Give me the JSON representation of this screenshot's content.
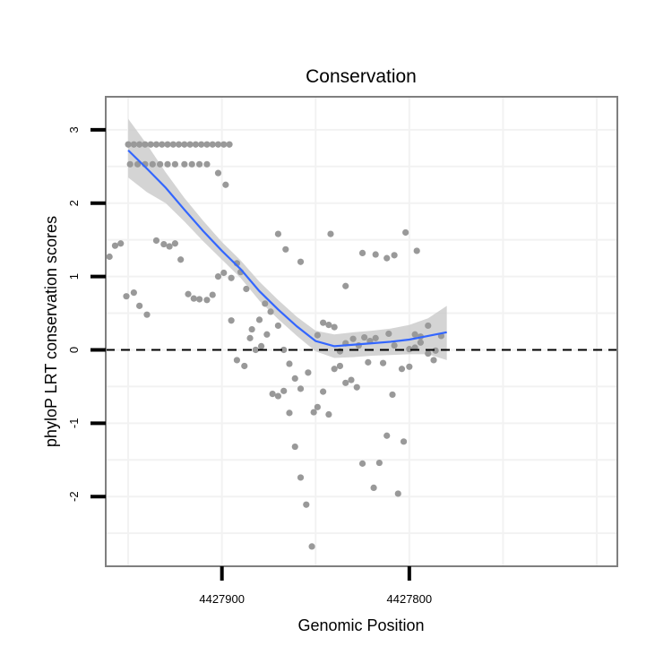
{
  "chart_data": {
    "type": "scatter",
    "title": "Conservation",
    "xlabel": "Genomic Position",
    "ylabel": "phyloP LRT conservation scores",
    "x_reversed": true,
    "xlim": [
      4427962,
      4427689
    ],
    "ylim": [
      -2.95,
      3.45
    ],
    "x_ticks": [
      4427900,
      4427800
    ],
    "x_tick_labels": [
      "4427900",
      "4427800"
    ],
    "y_ticks": [
      -2,
      -1,
      0,
      1,
      2,
      3
    ],
    "y_tick_labels": [
      "-2",
      "-1",
      "0",
      "1",
      "2",
      "3"
    ],
    "grid": true,
    "reference_line": {
      "y": 0,
      "style": "dashed"
    },
    "colors": {
      "points": "#999999",
      "smooth_line": "#3366ff",
      "ribbon": "#cccccc",
      "panel_border": "#7f7f7f",
      "grid": "#f2f2f2"
    },
    "series": [
      {
        "type": "points",
        "points": [
          [
            4427950,
            2.8
          ],
          [
            4427947,
            2.8
          ],
          [
            4427944,
            2.8
          ],
          [
            4427941,
            2.8
          ],
          [
            4427938,
            2.8
          ],
          [
            4427935,
            2.8
          ],
          [
            4427932,
            2.8
          ],
          [
            4427929,
            2.8
          ],
          [
            4427926,
            2.8
          ],
          [
            4427923,
            2.8
          ],
          [
            4427920,
            2.8
          ],
          [
            4427917,
            2.8
          ],
          [
            4427914,
            2.8
          ],
          [
            4427911,
            2.8
          ],
          [
            4427908,
            2.8
          ],
          [
            4427905,
            2.8
          ],
          [
            4427902,
            2.8
          ],
          [
            4427899,
            2.8
          ],
          [
            4427896,
            2.8
          ],
          [
            4427949,
            2.53
          ],
          [
            4427945,
            2.53
          ],
          [
            4427941,
            2.53
          ],
          [
            4427937,
            2.53
          ],
          [
            4427933,
            2.53
          ],
          [
            4427929,
            2.53
          ],
          [
            4427925,
            2.53
          ],
          [
            4427920,
            2.53
          ],
          [
            4427916,
            2.53
          ],
          [
            4427912,
            2.53
          ],
          [
            4427908,
            2.53
          ],
          [
            4427902,
            2.41
          ],
          [
            4427898,
            2.25
          ],
          [
            4427870,
            1.58
          ],
          [
            4427866,
            1.37
          ],
          [
            4427858,
            1.2
          ],
          [
            4427842,
            1.58
          ],
          [
            4427834,
            0.87
          ],
          [
            4427825,
            1.32
          ],
          [
            4427818,
            1.3
          ],
          [
            4427812,
            1.25
          ],
          [
            4427808,
            1.29
          ],
          [
            4427802,
            1.6
          ],
          [
            4427796,
            1.35
          ],
          [
            4427960,
            1.27
          ],
          [
            4427957,
            1.42
          ],
          [
            4427954,
            1.45
          ],
          [
            4427951,
            0.73
          ],
          [
            4427947,
            0.78
          ],
          [
            4427944,
            0.6
          ],
          [
            4427940,
            0.48
          ],
          [
            4427935,
            1.49
          ],
          [
            4427931,
            1.44
          ],
          [
            4427928,
            1.41
          ],
          [
            4427925,
            1.45
          ],
          [
            4427922,
            1.23
          ],
          [
            4427918,
            0.76
          ],
          [
            4427915,
            0.7
          ],
          [
            4427912,
            0.69
          ],
          [
            4427908,
            0.68
          ],
          [
            4427905,
            0.75
          ],
          [
            4427902,
            1.0
          ],
          [
            4427899,
            1.05
          ],
          [
            4427895,
            0.98
          ],
          [
            4427892,
            1.18
          ],
          [
            4427890,
            1.06
          ],
          [
            4427887,
            0.83
          ],
          [
            4427884,
            0.28
          ],
          [
            4427880,
            0.41
          ],
          [
            4427877,
            0.63
          ],
          [
            4427874,
            0.52
          ],
          [
            4427870,
            0.33
          ],
          [
            4427867,
            0.0
          ],
          [
            4427864,
            -0.19
          ],
          [
            4427861,
            -0.39
          ],
          [
            4427858,
            -0.53
          ],
          [
            4427854,
            -0.31
          ],
          [
            4427851,
            -0.85
          ],
          [
            4427849,
            0.2
          ],
          [
            4427846,
            0.37
          ],
          [
            4427843,
            0.34
          ],
          [
            4427840,
            0.31
          ],
          [
            4427837,
            -0.22
          ],
          [
            4427834,
            -0.45
          ],
          [
            4427830,
            0.15
          ],
          [
            4427827,
            0.06
          ],
          [
            4427824,
            0.17
          ],
          [
            4427821,
            0.12
          ],
          [
            4427818,
            0.16
          ],
          [
            4427814,
            -0.18
          ],
          [
            4427811,
            0.22
          ],
          [
            4427808,
            0.06
          ],
          [
            4427804,
            -0.26
          ],
          [
            4427800,
            0.01
          ],
          [
            4427797,
            0.21
          ],
          [
            4427794,
            0.18
          ],
          [
            4427790,
            0.33
          ],
          [
            4427786,
            -0.01
          ],
          [
            4427783,
            0.19
          ],
          [
            4427895,
            0.4
          ],
          [
            4427892,
            -0.14
          ],
          [
            4427888,
            -0.22
          ],
          [
            4427885,
            0.16
          ],
          [
            4427882,
            0.0
          ],
          [
            4427879,
            0.05
          ],
          [
            4427876,
            0.21
          ],
          [
            4427873,
            -0.6
          ],
          [
            4427870,
            -0.63
          ],
          [
            4427867,
            -0.56
          ],
          [
            4427864,
            -0.86
          ],
          [
            4427861,
            -1.32
          ],
          [
            4427858,
            -1.74
          ],
          [
            4427855,
            -2.11
          ],
          [
            4427852,
            -2.68
          ],
          [
            4427849,
            -0.78
          ],
          [
            4427846,
            -0.57
          ],
          [
            4427843,
            -0.88
          ],
          [
            4427840,
            -0.26
          ],
          [
            4427837,
            -0.02
          ],
          [
            4427834,
            0.09
          ],
          [
            4427831,
            -0.41
          ],
          [
            4427828,
            -0.51
          ],
          [
            4427825,
            -1.55
          ],
          [
            4427822,
            -0.17
          ],
          [
            4427819,
            -1.88
          ],
          [
            4427816,
            -1.54
          ],
          [
            4427812,
            -1.17
          ],
          [
            4427809,
            -0.61
          ],
          [
            4427806,
            -1.96
          ],
          [
            4427803,
            -1.25
          ],
          [
            4427800,
            -0.23
          ],
          [
            4427797,
            0.03
          ],
          [
            4427794,
            0.1
          ],
          [
            4427790,
            -0.05
          ],
          [
            4427787,
            -0.14
          ]
        ]
      },
      {
        "type": "smooth",
        "method": "loess",
        "points": [
          [
            4427950,
            2.72
          ],
          [
            4427940,
            2.47
          ],
          [
            4427930,
            2.21
          ],
          [
            4427920,
            1.91
          ],
          [
            4427910,
            1.62
          ],
          [
            4427900,
            1.35
          ],
          [
            4427890,
            1.1
          ],
          [
            4427880,
            0.8
          ],
          [
            4427870,
            0.55
          ],
          [
            4427860,
            0.32
          ],
          [
            4427850,
            0.12
          ],
          [
            4427840,
            0.05
          ],
          [
            4427830,
            0.07
          ],
          [
            4427820,
            0.09
          ],
          [
            4427810,
            0.11
          ],
          [
            4427800,
            0.14
          ],
          [
            4427790,
            0.19
          ],
          [
            4427780,
            0.24
          ]
        ],
        "ci_upper": [
          [
            4427950,
            3.15
          ],
          [
            4427940,
            2.8
          ],
          [
            4427930,
            2.42
          ],
          [
            4427920,
            2.07
          ],
          [
            4427910,
            1.76
          ],
          [
            4427900,
            1.47
          ],
          [
            4427890,
            1.22
          ],
          [
            4427880,
            0.93
          ],
          [
            4427870,
            0.68
          ],
          [
            4427860,
            0.45
          ],
          [
            4427850,
            0.26
          ],
          [
            4427840,
            0.21
          ],
          [
            4427830,
            0.24
          ],
          [
            4427820,
            0.26
          ],
          [
            4427810,
            0.29
          ],
          [
            4427800,
            0.34
          ],
          [
            4427790,
            0.43
          ],
          [
            4427780,
            0.6
          ]
        ],
        "ci_lower": [
          [
            4427950,
            2.35
          ],
          [
            4427940,
            2.15
          ],
          [
            4427930,
            2.0
          ],
          [
            4427920,
            1.75
          ],
          [
            4427910,
            1.48
          ],
          [
            4427900,
            1.23
          ],
          [
            4427890,
            0.98
          ],
          [
            4427880,
            0.67
          ],
          [
            4427870,
            0.42
          ],
          [
            4427860,
            0.19
          ],
          [
            4427850,
            -0.02
          ],
          [
            4427840,
            -0.11
          ],
          [
            4427830,
            -0.1
          ],
          [
            4427820,
            -0.08
          ],
          [
            4427810,
            -0.07
          ],
          [
            4427800,
            -0.06
          ],
          [
            4427790,
            -0.06
          ],
          [
            4427780,
            -0.14
          ]
        ]
      }
    ]
  }
}
